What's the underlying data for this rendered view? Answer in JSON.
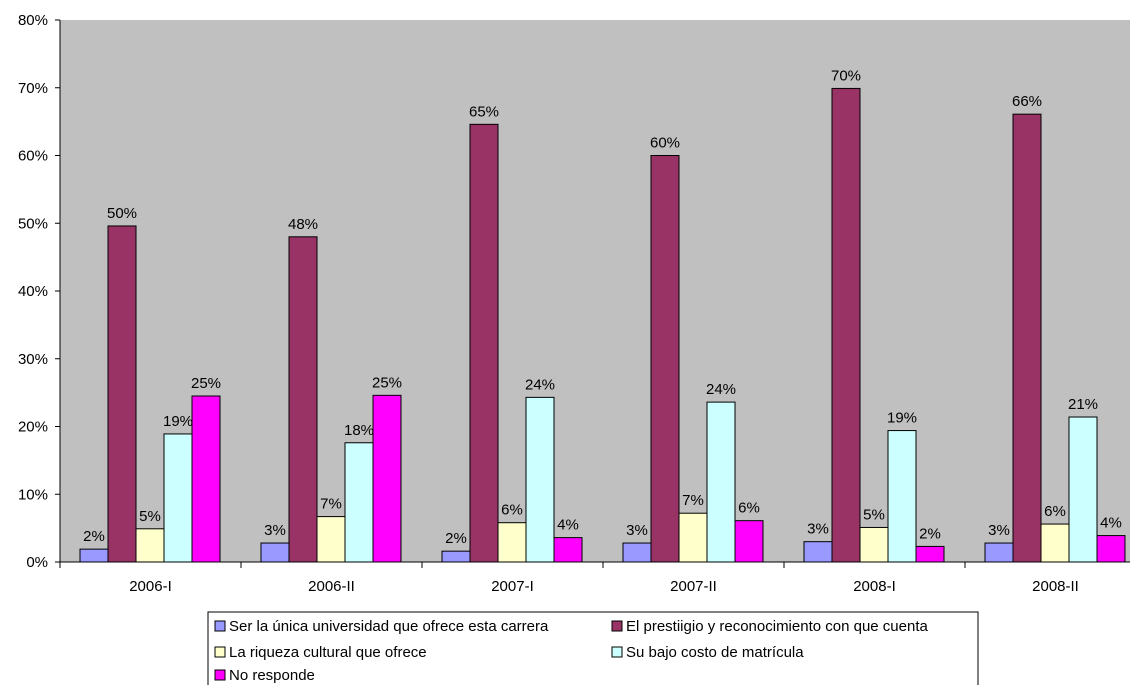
{
  "chart_data": {
    "type": "bar",
    "categories": [
      "2006-I",
      "2006-II",
      "2007-I",
      "2007-II",
      "2008-I",
      "2008-II"
    ],
    "series": [
      {
        "name": "Ser la única universidad que ofrece esta carrera",
        "color": "#9999FF",
        "values": [
          1.9,
          2.8,
          1.6,
          2.8,
          3.0,
          2.8
        ],
        "labels": [
          "2%",
          "3%",
          "2%",
          "3%",
          "3%",
          "3%"
        ]
      },
      {
        "name": "El prestiigio y reconocimiento con que cuenta",
        "color": "#993366",
        "values": [
          49.6,
          48.0,
          64.6,
          60.0,
          69.9,
          66.1
        ],
        "labels": [
          "50%",
          "48%",
          "65%",
          "60%",
          "70%",
          "66%"
        ]
      },
      {
        "name": "La riqueza cultural que ofrece",
        "color": "#FFFFCC",
        "values": [
          4.9,
          6.7,
          5.8,
          7.2,
          5.1,
          5.6
        ],
        "labels": [
          "5%",
          "7%",
          "6%",
          "7%",
          "5%",
          "6%"
        ]
      },
      {
        "name": "Su bajo costo de matrícula",
        "color": "#CCFFFF",
        "values": [
          18.9,
          17.6,
          24.3,
          23.6,
          19.4,
          21.4
        ],
        "labels": [
          "19%",
          "18%",
          "24%",
          "24%",
          "19%",
          "21%"
        ]
      },
      {
        "name": "No responde",
        "color": "#FF00FF",
        "values": [
          24.5,
          24.6,
          3.6,
          6.1,
          2.3,
          3.9
        ],
        "labels": [
          "25%",
          "25%",
          "4%",
          "6%",
          "2%",
          "4%"
        ]
      }
    ],
    "ylim": [
      0,
      80
    ],
    "yticks": [
      "0%",
      "10%",
      "20%",
      "30%",
      "40%",
      "50%",
      "60%",
      "70%",
      "80%"
    ],
    "ytick_values": [
      0,
      10,
      20,
      30,
      40,
      50,
      60,
      70,
      80
    ],
    "grid": false,
    "legend_position": "bottom",
    "plot_background": "#C0C0C0"
  }
}
